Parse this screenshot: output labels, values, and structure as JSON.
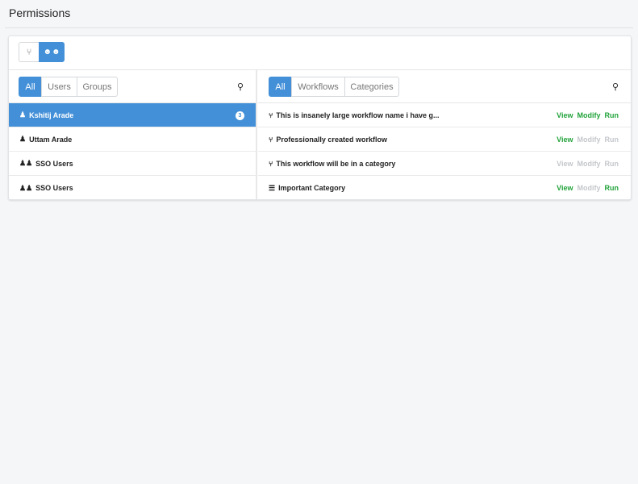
{
  "header": {
    "title": "Permissions"
  },
  "toolbar": {
    "modes": [
      {
        "icon": "workflow-icon",
        "glyph": "⑂",
        "active": false
      },
      {
        "icon": "users-icon",
        "glyph": "👥",
        "active": true
      }
    ]
  },
  "left": {
    "filters": [
      "All",
      "Users",
      "Groups"
    ],
    "active_filter": "All",
    "items": [
      {
        "icon": "user-icon",
        "label": "Kshitij Arade",
        "badge": "3",
        "selected": true
      },
      {
        "icon": "user-icon",
        "label": "Uttam Arade"
      },
      {
        "icon": "group-icon",
        "label": "SSO Users"
      },
      {
        "icon": "group-icon",
        "label": "SSO Users"
      }
    ]
  },
  "right": {
    "filters": [
      "All",
      "Workflows",
      "Categories"
    ],
    "active_filter": "All",
    "action_labels": [
      "View",
      "Modify",
      "Run"
    ],
    "items": [
      {
        "icon": "workflow-icon",
        "label": "This is insanely large workflow name i have g...",
        "view": true,
        "modify": true,
        "run": true
      },
      {
        "icon": "workflow-icon",
        "label": "Professionally created workflow",
        "view": true,
        "modify": false,
        "run": false
      },
      {
        "icon": "workflow-icon",
        "label": "This workflow will be in a category",
        "view": false,
        "modify": false,
        "run": false
      },
      {
        "icon": "category-icon",
        "label": "Important Category",
        "view": true,
        "modify": false,
        "run": true
      }
    ]
  },
  "colors": {
    "accent": "#4390d8",
    "granted": "#21a33a",
    "denied": "#c4c7cb"
  }
}
